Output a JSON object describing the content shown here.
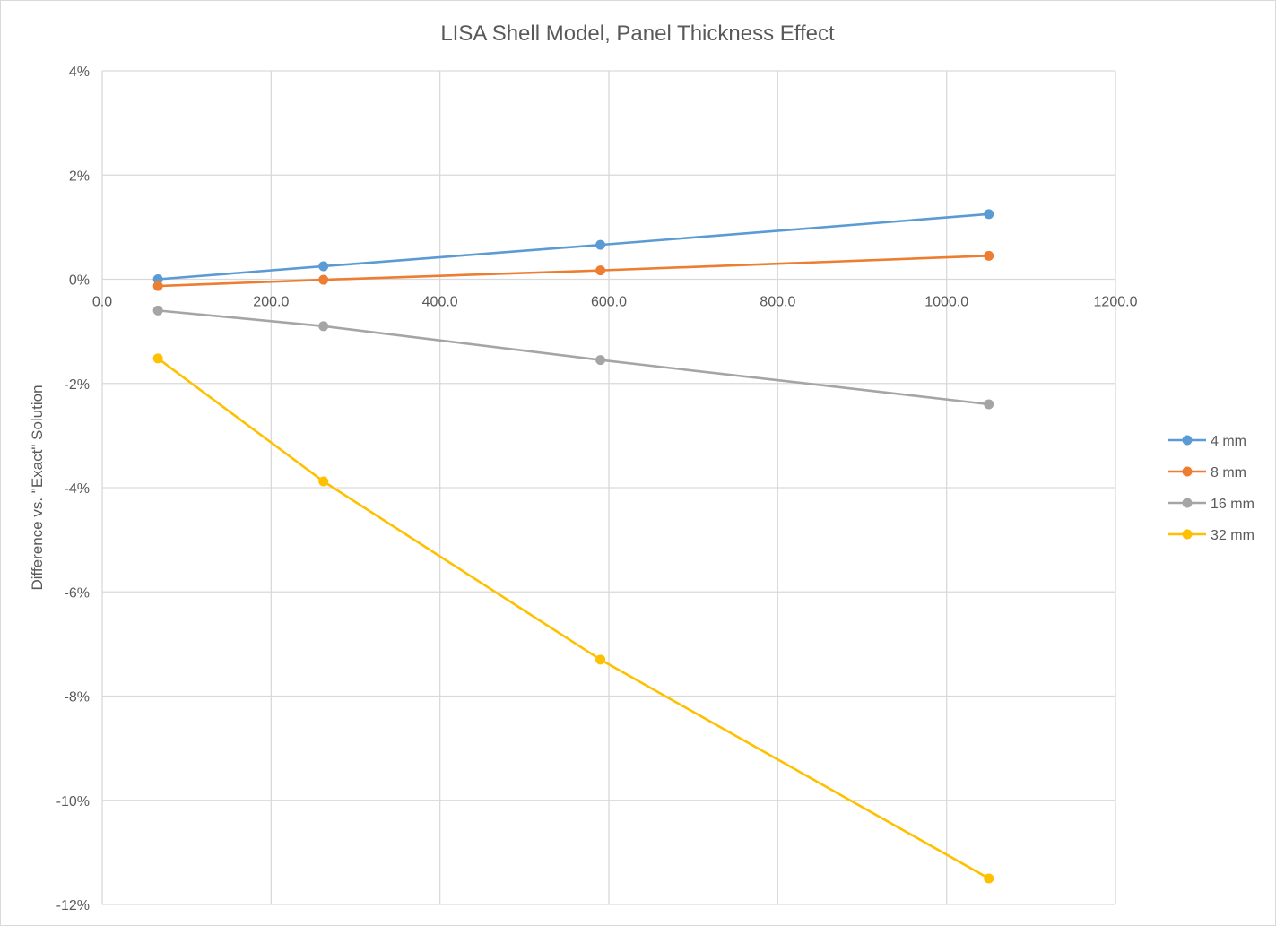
{
  "chart_data": {
    "type": "line",
    "title": "LISA Shell Model, Panel Thickness Effect",
    "xlabel": "",
    "ylabel": "Difference vs. \"Exact\" Solution",
    "xlim": [
      0,
      1200
    ],
    "ylim": [
      -12,
      4
    ],
    "x_ticks": [
      0,
      200,
      400,
      600,
      800,
      1000,
      1200
    ],
    "x_tick_labels": [
      "0.0",
      "200.0",
      "400.0",
      "600.0",
      "800.0",
      "1000.0",
      "1200.0"
    ],
    "y_ticks": [
      4,
      2,
      0,
      -2,
      -4,
      -6,
      -8,
      -10,
      -12
    ],
    "y_tick_labels": [
      "4%",
      "2%",
      "0%",
      "-2%",
      "-4%",
      "-6%",
      "-8%",
      "-10%",
      "-12%"
    ],
    "grid": true,
    "legend_position": "right",
    "x": [
      66,
      262,
      590,
      1050
    ],
    "series": [
      {
        "name": "4 mm",
        "color": "#5b9bd5",
        "values": [
          0.0,
          0.25,
          0.66,
          1.25
        ]
      },
      {
        "name": "8 mm",
        "color": "#ed7d31",
        "values": [
          -0.13,
          -0.01,
          0.17,
          0.45
        ]
      },
      {
        "name": "16 mm",
        "color": "#a5a5a5",
        "values": [
          -0.6,
          -0.9,
          -1.55,
          -2.4
        ]
      },
      {
        "name": "32 mm",
        "color": "#ffc000",
        "values": [
          -1.52,
          -3.88,
          -7.3,
          -11.5
        ]
      }
    ]
  }
}
